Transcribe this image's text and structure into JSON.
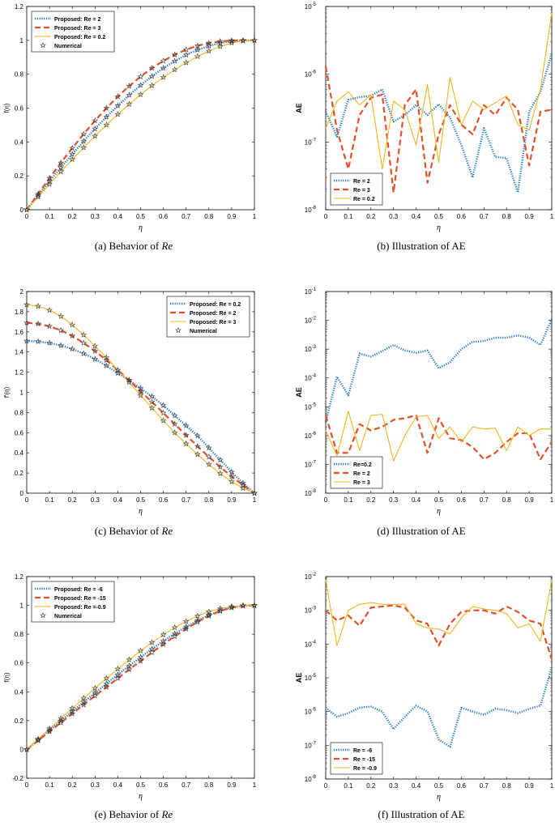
{
  "colors": {
    "blue": "#1f77c9",
    "red": "#e0502a",
    "gold": "#efb41e",
    "marker": "#333333"
  },
  "captions": {
    "a": {
      "prefix": "(a)  Behavior of ",
      "it": "Re",
      "suffix": ""
    },
    "b": {
      "prefix": "(b)  Illustration of AE",
      "it": "",
      "suffix": ""
    },
    "c": {
      "prefix": "(c)  Behavior of ",
      "it": "Re",
      "suffix": ""
    },
    "d": {
      "prefix": "(d)  Illustration of AE",
      "it": "",
      "suffix": ""
    },
    "e": {
      "prefix": "(e)  Behavior of ",
      "it": "Re",
      "suffix": ""
    },
    "f": {
      "prefix": "(f)  Illustration of AE",
      "it": "",
      "suffix": ""
    }
  },
  "chart_data": [
    {
      "id": "a",
      "type": "line",
      "scale": "linear",
      "xlabel": "η",
      "ylabel": "f(η)",
      "xlim": [
        0,
        1
      ],
      "ylim": [
        0,
        1.2
      ],
      "xticks": [
        0,
        0.1,
        0.2,
        0.3,
        0.4,
        0.5,
        0.6,
        0.7,
        0.8,
        0.9,
        1
      ],
      "xticklabels": [
        "0",
        "0.1",
        "0.2",
        "0.3",
        "0.4",
        "0.5",
        "0.6",
        "0.7",
        "0.8",
        "0.9",
        "1"
      ],
      "yticks": [
        0,
        0.2,
        0.4,
        0.6,
        0.8,
        1,
        1.2
      ],
      "yticklabels": [
        "0",
        "0.2",
        "0.4",
        "0.6",
        "0.8",
        "1",
        "1.2"
      ],
      "legend": "top-left",
      "x": [
        0,
        0.05,
        0.1,
        0.15,
        0.2,
        0.25,
        0.3,
        0.35,
        0.4,
        0.45,
        0.5,
        0.55,
        0.6,
        0.65,
        0.7,
        0.75,
        0.8,
        0.85,
        0.9,
        0.95,
        1
      ],
      "series": [
        {
          "name": "Proposed: Re = 2",
          "style": "dotted",
          "color": "blue",
          "values": [
            0,
            0.085,
            0.168,
            0.249,
            0.328,
            0.404,
            0.478,
            0.548,
            0.614,
            0.677,
            0.735,
            0.788,
            0.836,
            0.878,
            0.914,
            0.944,
            0.967,
            0.984,
            0.995,
            0.999,
            1.0
          ]
        },
        {
          "name": "Proposed: Re = 3",
          "style": "dashed",
          "color": "red",
          "values": [
            0,
            0.094,
            0.187,
            0.277,
            0.364,
            0.447,
            0.526,
            0.6,
            0.668,
            0.73,
            0.786,
            0.836,
            0.879,
            0.915,
            0.945,
            0.968,
            0.984,
            0.994,
            0.999,
            1.0,
            1.0
          ]
        },
        {
          "name": "Proposed: Re = 0.2",
          "style": "solid",
          "color": "gold",
          "values": [
            0,
            0.076,
            0.151,
            0.225,
            0.297,
            0.367,
            0.435,
            0.501,
            0.563,
            0.623,
            0.68,
            0.733,
            0.782,
            0.827,
            0.868,
            0.905,
            0.937,
            0.964,
            0.985,
            0.997,
            1.0
          ]
        }
      ],
      "markers_name": "Numerical"
    },
    {
      "id": "b",
      "type": "line",
      "scale": "log",
      "xlabel": "η",
      "ylabel": "AE",
      "xlim": [
        0,
        1
      ],
      "ylim": [
        1e-08,
        1e-05
      ],
      "xticks": [
        0,
        0.1,
        0.2,
        0.3,
        0.4,
        0.5,
        0.6,
        0.7,
        0.8,
        0.9,
        1
      ],
      "xticklabels": [
        "0",
        "0.1",
        "0.2",
        "0.3",
        "0.4",
        "0.5",
        "0.6",
        "0.7",
        "0.8",
        "0.9",
        "1"
      ],
      "ydecades": [
        -8,
        -7,
        -6,
        -5
      ],
      "legend": "bottom-left",
      "x": [
        0,
        0.05,
        0.1,
        0.15,
        0.2,
        0.25,
        0.3,
        0.35,
        0.4,
        0.45,
        0.5,
        0.55,
        0.6,
        0.65,
        0.7,
        0.75,
        0.8,
        0.85,
        0.9,
        0.95,
        1
      ],
      "series": [
        {
          "name": "Re = 2",
          "style": "dotted",
          "color": "blue",
          "values": [
            2.8e-07,
            1.2e-07,
            4.2e-07,
            4.6e-07,
            4.8e-07,
            6e-07,
            2e-07,
            2.5e-07,
            3.5e-07,
            2.5e-07,
            3.6e-07,
            2.3e-07,
            9e-08,
            3e-08,
            1.6e-07,
            6e-08,
            5.8e-08,
            1.8e-08,
            2.8e-07,
            5.5e-07,
            2e-06
          ]
        },
        {
          "name": "Re = 3",
          "style": "dashed",
          "color": "red",
          "values": [
            1.3e-06,
            1.5e-07,
            4e-08,
            2.5e-07,
            4.5e-07,
            5e-07,
            1.8e-08,
            3.5e-07,
            6e-07,
            2.5e-08,
            1.3e-07,
            3.5e-07,
            1.8e-07,
            1.3e-07,
            3.5e-07,
            2.5e-07,
            4.5e-07,
            3e-07,
            4.5e-08,
            2.8e-07,
            3e-07
          ]
        },
        {
          "name": "Re = 0.2",
          "style": "solid",
          "color": "gold",
          "values": [
            1.6e-07,
            4e-07,
            5.5e-07,
            3.5e-07,
            5e-07,
            4e-08,
            4e-07,
            3e-07,
            9e-08,
            7e-07,
            5e-08,
            9e-07,
            1.8e-07,
            4e-07,
            3e-07,
            3.8e-07,
            4.8e-07,
            1.8e-07,
            1.5e-07,
            6e-07,
            8e-06
          ]
        }
      ]
    },
    {
      "id": "c",
      "type": "line",
      "scale": "linear",
      "xlabel": "η",
      "ylabel": "f'(η)",
      "xlim": [
        0,
        1
      ],
      "ylim": [
        0,
        2
      ],
      "xticks": [
        0,
        0.1,
        0.2,
        0.3,
        0.4,
        0.5,
        0.6,
        0.7,
        0.8,
        0.9,
        1
      ],
      "xticklabels": [
        "0",
        "0.1",
        "0.2",
        "0.3",
        "0.4",
        "0.5",
        "0.6",
        "0.7",
        "0.8",
        "0.9",
        "1"
      ],
      "yticks": [
        0,
        0.2,
        0.4,
        0.6,
        0.8,
        1,
        1.2,
        1.4,
        1.6,
        1.8,
        2
      ],
      "yticklabels": [
        "0",
        "0.2",
        "0.4",
        "0.6",
        "0.8",
        "1",
        "1.2",
        "1.4",
        "1.6",
        "1.8",
        "2"
      ],
      "legend": "top-right",
      "x": [
        0,
        0.05,
        0.1,
        0.15,
        0.2,
        0.25,
        0.3,
        0.35,
        0.4,
        0.45,
        0.5,
        0.55,
        0.6,
        0.65,
        0.7,
        0.75,
        0.8,
        0.85,
        0.9,
        0.95,
        1
      ],
      "series": [
        {
          "name": "Proposed: Re = 0.2",
          "style": "dotted",
          "color": "blue",
          "values": [
            1.51,
            1.505,
            1.49,
            1.465,
            1.43,
            1.385,
            1.33,
            1.265,
            1.19,
            1.12,
            1.04,
            0.96,
            0.87,
            0.77,
            0.67,
            0.57,
            0.45,
            0.33,
            0.21,
            0.1,
            0.0
          ]
        },
        {
          "name": "Proposed: Re = 2",
          "style": "dashed",
          "color": "red",
          "values": [
            1.69,
            1.68,
            1.655,
            1.615,
            1.56,
            1.49,
            1.41,
            1.32,
            1.22,
            1.12,
            1.01,
            0.905,
            0.795,
            0.685,
            0.575,
            0.465,
            0.36,
            0.26,
            0.165,
            0.08,
            0.0
          ]
        },
        {
          "name": "Proposed: Re = 3",
          "style": "solid",
          "color": "gold",
          "values": [
            1.87,
            1.855,
            1.815,
            1.755,
            1.67,
            1.57,
            1.46,
            1.345,
            1.22,
            1.1,
            0.97,
            0.845,
            0.72,
            0.6,
            0.49,
            0.385,
            0.285,
            0.195,
            0.115,
            0.05,
            0.0
          ]
        }
      ],
      "markers_name": "Numerical"
    },
    {
      "id": "d",
      "type": "line",
      "scale": "log",
      "xlabel": "η",
      "ylabel": "AE",
      "xlim": [
        0,
        1
      ],
      "ylim": [
        1e-08,
        0.1
      ],
      "xticks": [
        0,
        0.1,
        0.2,
        0.3,
        0.4,
        0.5,
        0.6,
        0.7,
        0.8,
        0.9,
        1
      ],
      "xticklabels": [
        "0",
        "0.1",
        "0.2",
        "0.3",
        "0.4",
        "0.5",
        "0.6",
        "0.7",
        "0.8",
        "0.9",
        "1"
      ],
      "ydecades": [
        -8,
        -7,
        -6,
        -5,
        -4,
        -3,
        -2,
        -1
      ],
      "legend": "bottom-left",
      "x": [
        0,
        0.05,
        0.1,
        0.15,
        0.2,
        0.25,
        0.3,
        0.35,
        0.4,
        0.45,
        0.5,
        0.55,
        0.6,
        0.65,
        0.7,
        0.75,
        0.8,
        0.85,
        0.9,
        0.95,
        1
      ],
      "series": [
        {
          "name": "Re=0.2",
          "style": "dotted",
          "color": "blue",
          "values": [
            3e-06,
            0.00011,
            2.5e-05,
            0.0007,
            0.00055,
            0.00085,
            0.0014,
            0.0009,
            0.00075,
            0.0009,
            0.00022,
            0.00035,
            0.001,
            0.0018,
            0.0019,
            0.0025,
            0.0025,
            0.003,
            0.0025,
            0.0014,
            0.011
          ]
        },
        {
          "name": "Re = 2",
          "style": "dashed",
          "color": "red",
          "values": [
            5e-06,
            2.5e-07,
            2.5e-07,
            2.5e-06,
            1.5e-06,
            2e-06,
            3.5e-06,
            4e-06,
            5e-06,
            2.5e-07,
            4e-06,
            8e-07,
            7e-07,
            4e-07,
            1.5e-07,
            2.5e-07,
            6e-07,
            1.2e-06,
            1.2e-06,
            1.5e-07,
            6e-07
          ]
        },
        {
          "name": "Re = 3",
          "style": "solid",
          "color": "gold",
          "values": [
            1.5e-06,
            2e-07,
            7e-06,
            3e-07,
            5e-06,
            5.5e-06,
            1.3e-07,
            1e-06,
            4.5e-06,
            5e-06,
            8e-07,
            2e-06,
            6e-07,
            2e-06,
            1.7e-06,
            1.8e-06,
            3e-07,
            2e-06,
            1e-06,
            1.7e-06,
            1.7e-06
          ]
        }
      ]
    },
    {
      "id": "e",
      "type": "line",
      "scale": "linear",
      "xlabel": "η",
      "ylabel": "f(η)",
      "xlim": [
        0,
        1
      ],
      "ylim": [
        -0.2,
        1.2
      ],
      "xticks": [
        0,
        0.1,
        0.2,
        0.3,
        0.4,
        0.5,
        0.6,
        0.7,
        0.8,
        0.9,
        1
      ],
      "xticklabels": [
        "0",
        "0.1",
        "0.2",
        "0.3",
        "0.4",
        "0.5",
        "0.6",
        "0.7",
        "0.8",
        "0.9",
        "1"
      ],
      "yticks": [
        -0.2,
        0,
        0.2,
        0.4,
        0.6,
        0.8,
        1,
        1.2
      ],
      "yticklabels": [
        "-0.2",
        "0",
        "0.2",
        "0.4",
        "0.6",
        "0.8",
        "1",
        "1.2"
      ],
      "legend": "top-left",
      "x": [
        0,
        0.05,
        0.1,
        0.15,
        0.2,
        0.25,
        0.3,
        0.35,
        0.4,
        0.45,
        0.5,
        0.55,
        0.6,
        0.65,
        0.7,
        0.75,
        0.8,
        0.85,
        0.9,
        0.95,
        1
      ],
      "series": [
        {
          "name": "Proposed: Re = -6",
          "style": "dotted",
          "color": "blue",
          "values": [
            0,
            0.066,
            0.132,
            0.198,
            0.263,
            0.328,
            0.393,
            0.456,
            0.519,
            0.58,
            0.64,
            0.697,
            0.752,
            0.803,
            0.851,
            0.894,
            0.932,
            0.963,
            0.985,
            0.997,
            1.0
          ]
        },
        {
          "name": "Proposed: Re = -15",
          "style": "dashed",
          "color": "red",
          "values": [
            0,
            0.062,
            0.124,
            0.186,
            0.248,
            0.31,
            0.372,
            0.433,
            0.494,
            0.555,
            0.614,
            0.673,
            0.73,
            0.785,
            0.837,
            0.885,
            0.927,
            0.961,
            0.985,
            0.997,
            1.0
          ]
        },
        {
          "name": "Proposed: Re =-0.9",
          "style": "solid",
          "color": "gold",
          "values": [
            0,
            0.072,
            0.144,
            0.215,
            0.286,
            0.356,
            0.425,
            0.493,
            0.559,
            0.623,
            0.685,
            0.743,
            0.797,
            0.846,
            0.889,
            0.926,
            0.956,
            0.978,
            0.992,
            0.999,
            1.0
          ]
        }
      ],
      "markers_name": "Numerical"
    },
    {
      "id": "f",
      "type": "line",
      "scale": "log",
      "xlabel": "η",
      "ylabel": "AE",
      "xlim": [
        0,
        1
      ],
      "ylim": [
        1e-08,
        0.01
      ],
      "xticks": [
        0,
        0.1,
        0.2,
        0.3,
        0.4,
        0.5,
        0.6,
        0.7,
        0.8,
        0.9,
        1
      ],
      "xticklabels": [
        "0",
        "0.1",
        "0.2",
        "0.3",
        "0.4",
        "0.5",
        "0.6",
        "0.7",
        "0.8",
        "0.9",
        "1"
      ],
      "ydecades": [
        -8,
        -7,
        -6,
        -5,
        -4,
        -3,
        -2
      ],
      "legend": "bottom-left",
      "x": [
        0,
        0.05,
        0.1,
        0.15,
        0.2,
        0.25,
        0.3,
        0.35,
        0.4,
        0.45,
        0.5,
        0.55,
        0.6,
        0.65,
        0.7,
        0.75,
        0.8,
        0.85,
        0.9,
        0.95,
        1
      ],
      "series": [
        {
          "name": "Re = -6",
          "style": "dotted",
          "color": "blue",
          "values": [
            1.3e-06,
            7e-07,
            9e-07,
            1.3e-06,
            1.4e-06,
            1e-06,
            3e-07,
            7e-07,
            1.5e-06,
            1e-06,
            1.5e-07,
            9e-08,
            1.3e-06,
            1e-06,
            8e-07,
            1.2e-06,
            1.1e-06,
            9e-07,
            1.2e-06,
            1.5e-06,
            2e-05
          ]
        },
        {
          "name": "Re = -15",
          "style": "dashed",
          "color": "red",
          "values": [
            0.001,
            0.0005,
            0.0007,
            0.00035,
            0.0012,
            0.0013,
            0.0014,
            0.0012,
            0.0005,
            0.0004,
            9e-05,
            0.0004,
            0.0009,
            0.001,
            0.001,
            0.0008,
            0.0013,
            0.0009,
            0.0005,
            0.0004,
            3.5e-05
          ]
        },
        {
          "name": "Re = -0.9",
          "style": "solid",
          "color": "gold",
          "values": [
            0.008,
            9e-05,
            0.001,
            0.0015,
            0.0017,
            0.0015,
            0.0015,
            0.0015,
            0.0004,
            0.0003,
            0.00028,
            0.0002,
            0.0006,
            0.0013,
            0.0011,
            0.001,
            0.0008,
            0.0003,
            0.0004,
            0.00012,
            0.008
          ]
        }
      ]
    }
  ]
}
